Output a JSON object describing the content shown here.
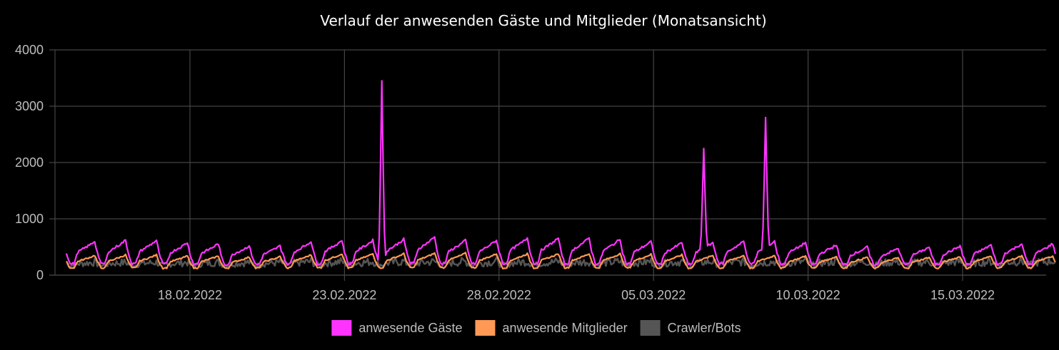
{
  "chart_data": {
    "type": "line",
    "title": "Verlauf der anwesenden Gäste und Mitglieder (Monatsansicht)",
    "xlabel": "",
    "ylabel": "",
    "x_range": [
      "2022-02-14",
      "2022-03-18"
    ],
    "ylim": [
      0,
      4000
    ],
    "y_ticks": [
      {
        "value": 0,
        "label": "0"
      },
      {
        "value": 1000,
        "label": "1000"
      },
      {
        "value": 2000,
        "label": "2000"
      },
      {
        "value": 3000,
        "label": "3000"
      },
      {
        "value": 4000,
        "label": "4000"
      }
    ],
    "x_ticks": [
      {
        "date": "2022-02-18",
        "label": "18.02.2022"
      },
      {
        "date": "2022-02-23",
        "label": "23.02.2022"
      },
      {
        "date": "2022-02-28",
        "label": "28.02.2022"
      },
      {
        "date": "2022-03-05",
        "label": "05.03.2022"
      },
      {
        "date": "2022-03-10",
        "label": "10.03.2022"
      },
      {
        "date": "2022-03-15",
        "label": "15.03.2022"
      }
    ],
    "grid": true,
    "legend_position": "bottom",
    "series": [
      {
        "name": "anwesende Gäste",
        "color": "#ff33ff",
        "daily_peak": [
          600,
          620,
          620,
          580,
          560,
          520,
          520,
          600,
          620,
          620,
          640,
          680,
          620,
          620,
          660,
          660,
          660,
          640,
          600,
          580,
          580,
          600,
          600,
          580,
          540,
          500,
          480,
          500,
          520,
          540,
          560,
          560,
          560
        ],
        "daily_min": 150,
        "spikes": [
          {
            "date": "2022-02-24T05:00",
            "value": 3450
          },
          {
            "date": "2022-03-06T15:00",
            "value": 2250
          },
          {
            "date": "2022-03-08T15:00",
            "value": 2800
          }
        ]
      },
      {
        "name": "anwesende Mitglieder",
        "color": "#ff9955",
        "daily_peak": [
          350,
          360,
          360,
          340,
          340,
          320,
          330,
          360,
          380,
          380,
          380,
          390,
          390,
          380,
          380,
          380,
          380,
          380,
          370,
          360,
          350,
          350,
          350,
          340,
          330,
          320,
          310,
          320,
          330,
          340,
          340,
          340,
          340
        ],
        "daily_min": 100
      },
      {
        "name": "Crawler/Bots",
        "color": "#555555",
        "daily_peak": [
          300,
          300,
          300,
          300,
          300,
          300,
          300,
          320,
          320,
          320,
          320,
          320,
          320,
          320,
          320,
          320,
          320,
          320,
          320,
          320,
          320,
          320,
          320,
          320,
          320,
          320,
          320,
          320,
          320,
          320,
          340,
          340,
          340
        ],
        "daily_min": 80
      }
    ]
  },
  "legend": [
    {
      "label": "anwesende Gäste",
      "color": "#ff33ff"
    },
    {
      "label": "anwesende Mitglieder",
      "color": "#ff9955"
    },
    {
      "label": "Crawler/Bots",
      "color": "#555555"
    }
  ]
}
